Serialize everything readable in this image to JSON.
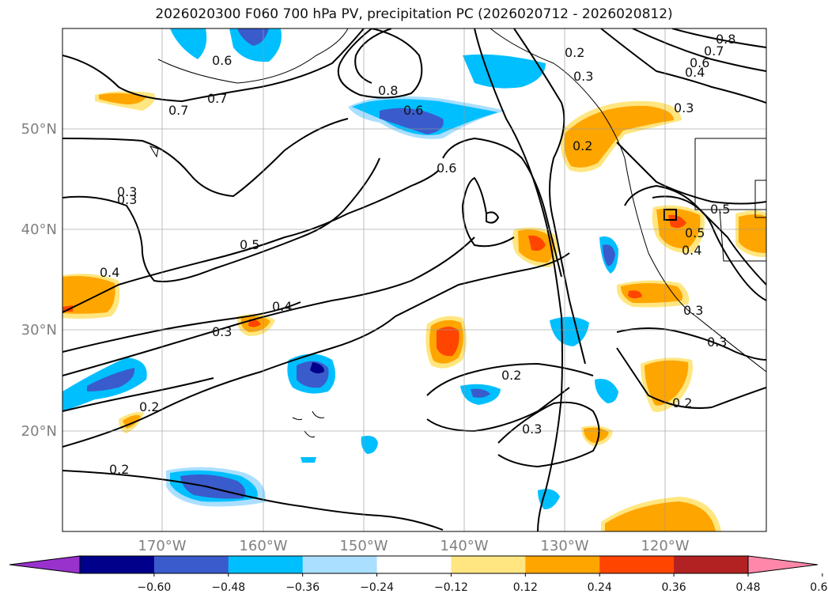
{
  "title": "2026020300 F060 700 hPa PV, precipitation PC (2026020712 - 2026020812)",
  "map": {
    "lat_labels": [
      "50°N",
      "40°N",
      "30°N",
      "20°N"
    ],
    "lon_labels": [
      "170°W",
      "160°W",
      "150°W",
      "140°W",
      "130°W",
      "120°W"
    ],
    "contour_labels": [
      "0.6",
      "0.7",
      "0.8",
      "0.6",
      "0.2",
      "0.3",
      "0.8",
      "0.7",
      "0.6",
      "0.4",
      "0.3",
      "0.2",
      "0.3",
      "0.6",
      "0.7",
      "0.5",
      "0.4",
      "0.5",
      "0.4",
      "0.3",
      "0.4",
      "0.3",
      "0.2",
      "0.2",
      "0.3",
      "0.2",
      "0.3",
      "0.2",
      "0.3",
      "0.5"
    ]
  },
  "colorbar": {
    "ticks": [
      "−0.60",
      "−0.48",
      "−0.36",
      "−0.24",
      "−0.12",
      "0.12",
      "0.24",
      "0.36",
      "0.48",
      "0.60"
    ],
    "colors": [
      "#9932cc",
      "#00008b",
      "#3a5bcc",
      "#00bfff",
      "#aadfff",
      "#ffffff",
      "#ffe680",
      "#ffa500",
      "#ff4500",
      "#b22222",
      "#ff88aa"
    ]
  }
}
